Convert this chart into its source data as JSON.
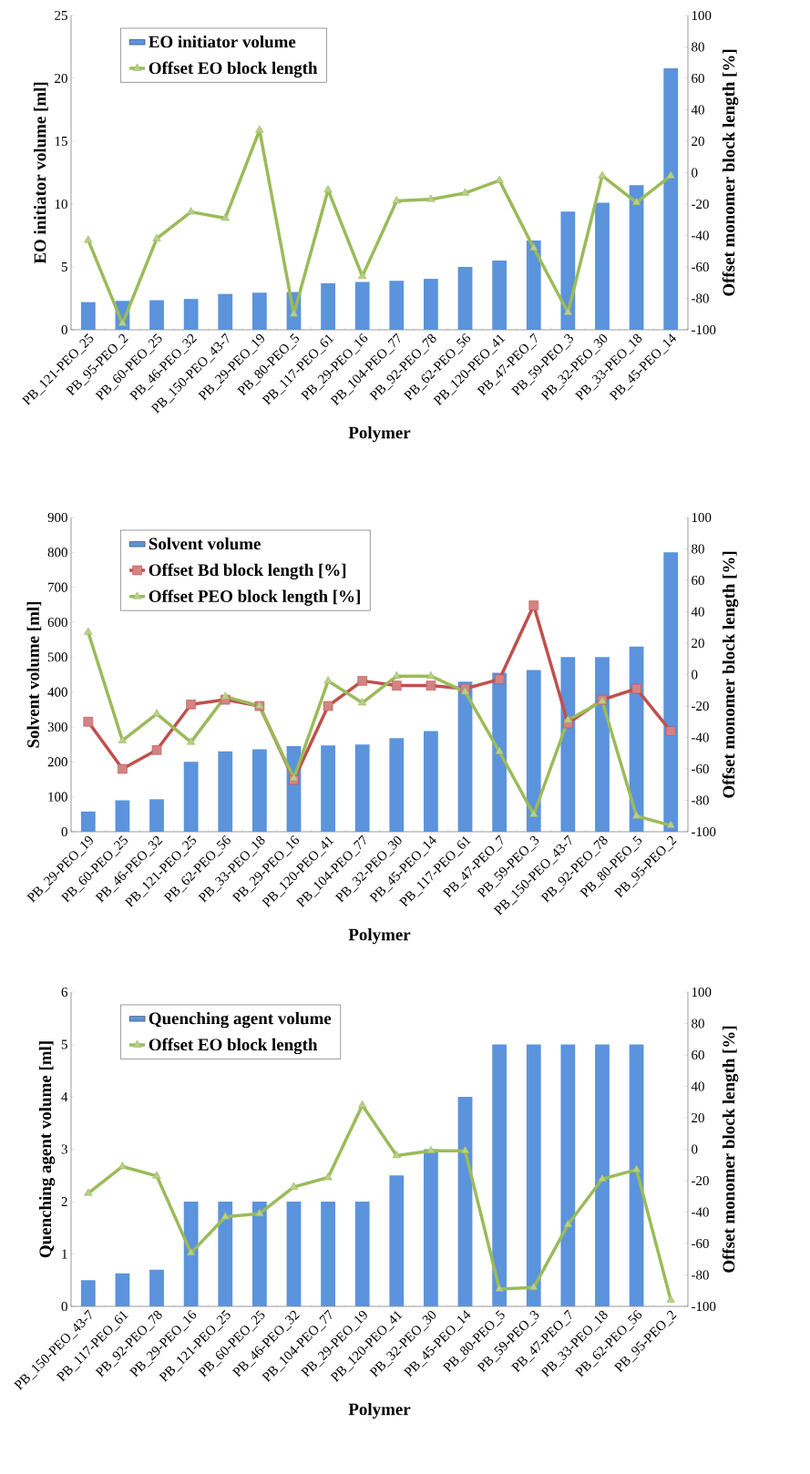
{
  "chart_data": [
    {
      "type": "bar",
      "xlabel": "Polymer",
      "ylabel": "EO initiator volume [ml]",
      "y2label": "Offset monomer block length [%]",
      "legend": "top left",
      "categories": [
        "PB_121-PEO_25",
        "PB_95-PEO_2",
        "PB_60-PEO_25",
        "PB_46-PEO_32",
        "PB_150-PEO_43-7",
        "PB_29-PEO_19",
        "PB_80-PEO_5",
        "PB_117-PEO_61",
        "PB_29-PEO_16",
        "PB_104-PEO_77",
        "PB_92-PEO_78",
        "PB_62-PEO_56",
        "PB_120-PEO_41",
        "PB_47-PEO_7",
        "PB_59-PEO_3",
        "PB_32-PEO_30",
        "PB_33-PEO_18",
        "PB_45-PEO_14"
      ],
      "series": [
        {
          "name": "EO initiator volume",
          "color": "#5b93dc",
          "values": [
            2.2,
            2.3,
            2.35,
            2.45,
            2.85,
            2.95,
            3.0,
            3.7,
            3.8,
            3.9,
            4.05,
            5.0,
            5.5,
            7.1,
            9.4,
            10.1,
            11.5,
            20.8
          ]
        },
        {
          "name": "Offset EO block length",
          "type": "line",
          "axis": "y2",
          "marker": "triangle",
          "color": "#9bbb59",
          "values": [
            -43,
            -96,
            -42,
            -25,
            -29,
            27,
            -90,
            -11,
            -66,
            -18,
            -17,
            -13,
            -5,
            -48,
            -89,
            -2,
            -19,
            -2
          ]
        }
      ],
      "ylim": [
        0,
        25
      ],
      "yticks": [
        0,
        5,
        10,
        15,
        20,
        25
      ],
      "y2lim": [
        -100,
        100
      ],
      "y2ticks": [
        -100,
        -80,
        -60,
        -40,
        -20,
        0,
        20,
        40,
        60,
        80,
        100
      ]
    },
    {
      "type": "bar",
      "xlabel": "Polymer",
      "ylabel": "Solvent volume [ml]",
      "y2label": "Offset monomer block length [%]",
      "legend": "top left",
      "categories": [
        "PB_29-PEO_19",
        "PB_60-PEO_25",
        "PB_46-PEO_32",
        "PB_121-PEO_25",
        "PB_62-PEO_56",
        "PB_33-PEO_18",
        "PB_29-PEO_16",
        "PB_120-PEO_41",
        "PB_104-PEO_77",
        "PB_32-PEO_30",
        "PB_45-PEO_14",
        "PB_117-PEO_61",
        "PB_47-PEO_7",
        "PB_59-PEO_3",
        "PB_150-PEO_43-7",
        "PB_92-PEO_78",
        "PB_80-PEO_5",
        "PB_95-PEO_2"
      ],
      "series": [
        {
          "name": "Solvent volume",
          "color": "#5b93dc",
          "values": [
            58,
            90,
            93,
            200,
            230,
            236,
            245,
            247,
            250,
            268,
            288,
            430,
            455,
            463,
            500,
            500,
            530,
            800
          ]
        },
        {
          "name": "Offset Bd block length [%]",
          "type": "line",
          "axis": "y2",
          "marker": "square",
          "color": "#c0504d",
          "values": [
            -30,
            -60,
            -48,
            -19,
            -16,
            -20,
            -67,
            -20,
            -4,
            -7,
            -7,
            -9,
            -3,
            44,
            -31,
            -16,
            -9,
            -36
          ]
        },
        {
          "name": "Offset PEO block length [%]",
          "type": "line",
          "axis": "y2",
          "marker": "triangle",
          "color": "#9bbb59",
          "values": [
            27,
            -42,
            -25,
            -43,
            -14,
            -20,
            -66,
            -4,
            -18,
            -1,
            -1,
            -11,
            -49,
            -89,
            -29,
            -17,
            -90,
            -96
          ]
        }
      ],
      "ylim": [
        0,
        900
      ],
      "yticks": [
        0,
        100,
        200,
        300,
        400,
        500,
        600,
        700,
        800,
        900
      ],
      "y2lim": [
        -100,
        100
      ],
      "y2ticks": [
        -100,
        -80,
        -60,
        -40,
        -20,
        0,
        20,
        40,
        60,
        80,
        100
      ]
    },
    {
      "type": "bar",
      "xlabel": "Polymer",
      "ylabel": "Quenching agent volume [ml]",
      "y2label": "Offset monomer block length [%]",
      "legend": "top left",
      "categories": [
        "PB_150-PEO_43-7",
        "PB_117-PEO_61",
        "PB_92-PEO_78",
        "PB_29-PEO_16",
        "PB_121-PEO_25",
        "PB_60-PEO_25",
        "PB_46-PEO_32",
        "PB_104-PEO_77",
        "PB_29-PEO_19",
        "PB_120-PEO_41",
        "PB_32-PEO_30",
        "PB_45-PEO_14",
        "PB_80-PEO_5",
        "PB_59-PEO_3",
        "PB_47-PEO_7",
        "PB_33-PEO_18",
        "PB_62-PEO_56",
        "PB_95-PEO_2"
      ],
      "series": [
        {
          "name": "Quenching agent volume",
          "color": "#5b93dc",
          "values": [
            0.5,
            0.63,
            0.7,
            2,
            2,
            2,
            2,
            2,
            2,
            2.5,
            3,
            4,
            5,
            5,
            5,
            5,
            5,
            null
          ]
        },
        {
          "name": "Offset EO block length",
          "type": "line",
          "axis": "y2",
          "marker": "triangle",
          "color": "#9bbb59",
          "values": [
            -28,
            -11,
            -17,
            -66,
            -43,
            -41,
            -24,
            -18,
            28,
            -4,
            -1,
            -1,
            -89,
            -88,
            -48,
            -19,
            -13,
            -96
          ]
        }
      ],
      "ylim": [
        0,
        6
      ],
      "yticks": [
        0,
        1,
        2,
        3,
        4,
        5,
        6
      ],
      "y2lim": [
        -100,
        100
      ],
      "y2ticks": [
        -100,
        -80,
        -60,
        -40,
        -20,
        0,
        20,
        40,
        60,
        80,
        100
      ]
    }
  ]
}
